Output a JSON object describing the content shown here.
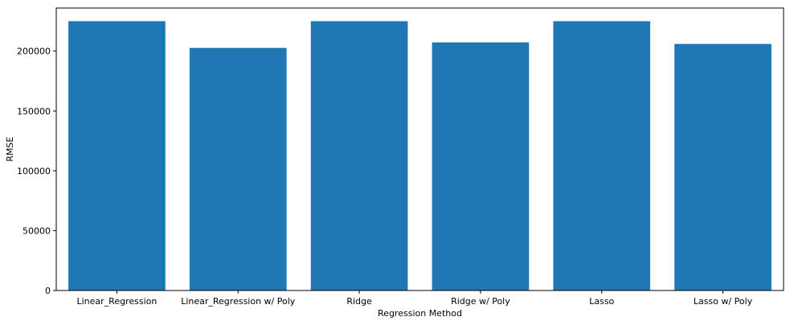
{
  "chart_data": {
    "type": "bar",
    "title": "",
    "xlabel": "Regression Method",
    "ylabel": "RMSE",
    "categories": [
      "Linear_Regression",
      "Linear_Regression w/ Poly",
      "Ridge",
      "Ridge w/ Poly",
      "Lasso",
      "Lasso w/ Poly"
    ],
    "values": [
      225000,
      202700,
      225000,
      207300,
      225000,
      206000
    ],
    "ylim": [
      0,
      236000
    ],
    "yticks": [
      0,
      50000,
      100000,
      150000,
      200000
    ],
    "grid": false,
    "legend": "none",
    "colors": {
      "bar": "#1f77b4",
      "axis": "#000000",
      "text": "#000000",
      "background": "#ffffff"
    }
  }
}
